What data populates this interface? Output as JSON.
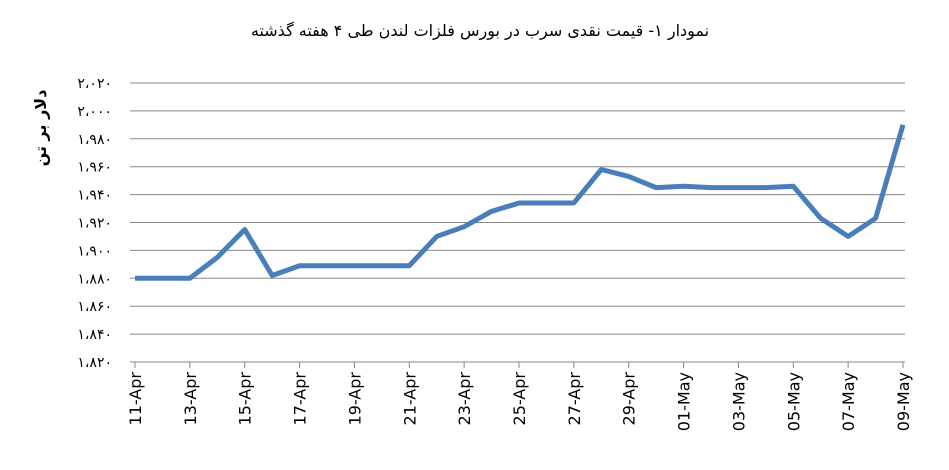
{
  "chart_data": {
    "type": "line",
    "title": "نمودار ۱- قیمت نقدی سرب  در بورس فلزات لندن طی ۴ هفته گذشته",
    "y_label": "دلار بر تن",
    "categories": [
      "11-Apr",
      null,
      "13-Apr",
      null,
      "15-Apr",
      null,
      "17-Apr",
      null,
      "19-Apr",
      null,
      "21-Apr",
      null,
      "23-Apr",
      null,
      "25-Apr",
      null,
      "27-Apr",
      null,
      "29-Apr",
      null,
      "01-May",
      null,
      "03-May",
      null,
      "05-May",
      null,
      "07-May",
      null,
      "09-May"
    ],
    "series": [
      {
        "name": "سرب",
        "color": "#4a7ebb",
        "values": [
          1880,
          1880,
          1880,
          1895,
          1915,
          1882,
          1889,
          1889,
          1889,
          1889,
          1889,
          1910,
          1917,
          1928,
          1934,
          1934,
          1934,
          1958,
          1953,
          1945,
          1946,
          1945,
          1945,
          1945,
          1946,
          1923,
          1910,
          1923,
          1990
        ]
      }
    ],
    "ylim": [
      1820,
      2020
    ],
    "yticks": [
      {
        "value": 1820,
        "label": "۱،۸۲۰"
      },
      {
        "value": 1840,
        "label": "۱،۸۴۰"
      },
      {
        "value": 1860,
        "label": "۱،۸۶۰"
      },
      {
        "value": 1880,
        "label": "۱،۸۸۰"
      },
      {
        "value": 1900,
        "label": "۱،۹۰۰"
      },
      {
        "value": 1920,
        "label": "۱،۹۲۰"
      },
      {
        "value": 1940,
        "label": "۱،۹۴۰"
      },
      {
        "value": 1960,
        "label": "۱،۹۶۰"
      },
      {
        "value": 1980,
        "label": "۱،۹۸۰"
      },
      {
        "value": 2000,
        "label": "۲،۰۰۰"
      },
      {
        "value": 2020,
        "label": "۲،۰۲۰"
      }
    ],
    "grid": true
  }
}
